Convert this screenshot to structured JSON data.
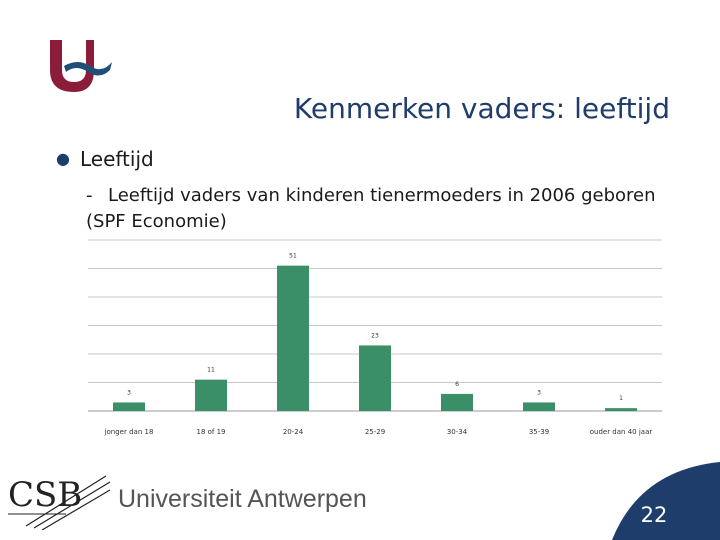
{
  "slide": {
    "title": "Kenmerken vaders: leeftijd",
    "bullet": "Leeftijd",
    "sub_bullet": "Leeftijd vaders van kinderen tienermoeders in 2006 geboren (SPF Economie)",
    "page_number": "22"
  },
  "footer": {
    "institution_logo": "CSB",
    "university_name": "Universiteit Antwerpen"
  },
  "colors": {
    "bar": "#3a8f68",
    "title": "#1f3d6b",
    "logo_red": "#8c1d3a",
    "logo_blue": "#1f4e79",
    "band": "#1f3d6b"
  },
  "chart_data": {
    "type": "bar",
    "categories": [
      "jonger dan 18",
      "18 of 19",
      "20-24",
      "25-29",
      "30-34",
      "35-39",
      "ouder dan 40 jaar"
    ],
    "values": [
      3,
      11,
      51,
      23,
      6,
      3,
      1
    ],
    "value_labels": [
      "3",
      "11",
      "51",
      "23",
      "6",
      "3",
      "1"
    ],
    "ylim": [
      0,
      60
    ],
    "grid": true,
    "legend": "none"
  }
}
